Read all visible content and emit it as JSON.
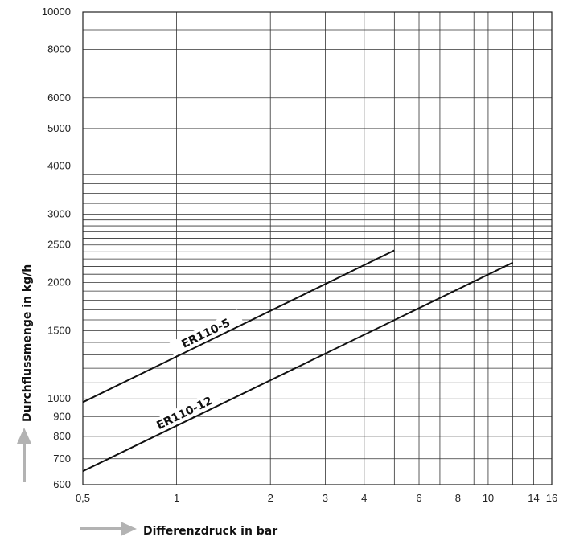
{
  "chart_data": {
    "type": "line",
    "x_scale": "log",
    "y_scale": "log",
    "xlim": [
      0.5,
      16
    ],
    "ylim": [
      600,
      10000
    ],
    "grid": true,
    "xlabel": "Differenzdruck in bar",
    "ylabel": "Durchflussmenge in kg/h",
    "x_ticks": [
      {
        "value": 0.5,
        "label": "0,5"
      },
      {
        "value": 1,
        "label": "1"
      },
      {
        "value": 2,
        "label": "2"
      },
      {
        "value": 3,
        "label": "3"
      },
      {
        "value": 4,
        "label": "4"
      },
      {
        "value": 6,
        "label": "6"
      },
      {
        "value": 8,
        "label": "8"
      },
      {
        "value": 10,
        "label": "10"
      },
      {
        "value": 14,
        "label": "14"
      },
      {
        "value": 16,
        "label": "16"
      }
    ],
    "x_gridlines": [
      0.5,
      1,
      2,
      3,
      4,
      5,
      6,
      7,
      8,
      9,
      10,
      12,
      14,
      16
    ],
    "y_ticks": [
      {
        "value": 600,
        "label": "600"
      },
      {
        "value": 700,
        "label": "700"
      },
      {
        "value": 800,
        "label": "800"
      },
      {
        "value": 900,
        "label": "900"
      },
      {
        "value": 1000,
        "label": "1000"
      },
      {
        "value": 1500,
        "label": "1500"
      },
      {
        "value": 2000,
        "label": "2000"
      },
      {
        "value": 2500,
        "label": "2500"
      },
      {
        "value": 3000,
        "label": "3000"
      },
      {
        "value": 4000,
        "label": "4000"
      },
      {
        "value": 5000,
        "label": "5000"
      },
      {
        "value": 6000,
        "label": "6000"
      },
      {
        "value": 8000,
        "label": "8000"
      },
      {
        "value": 10000,
        "label": "10000"
      }
    ],
    "y_gridlines": [
      600,
      700,
      800,
      900,
      1000,
      1100,
      1200,
      1300,
      1400,
      1500,
      1600,
      1700,
      1800,
      1900,
      2000,
      2100,
      2200,
      2300,
      2400,
      2500,
      2600,
      2700,
      2800,
      2900,
      3000,
      3200,
      3400,
      3600,
      3800,
      4000,
      5000,
      6000,
      7000,
      8000,
      9000,
      10000
    ],
    "series": [
      {
        "name": "ER110-5",
        "points": [
          {
            "x": 0.5,
            "y": 980
          },
          {
            "x": 5,
            "y": 2420
          }
        ]
      },
      {
        "name": "ER110-12",
        "points": [
          {
            "x": 0.5,
            "y": 650
          },
          {
            "x": 12,
            "y": 2250
          }
        ]
      }
    ]
  }
}
